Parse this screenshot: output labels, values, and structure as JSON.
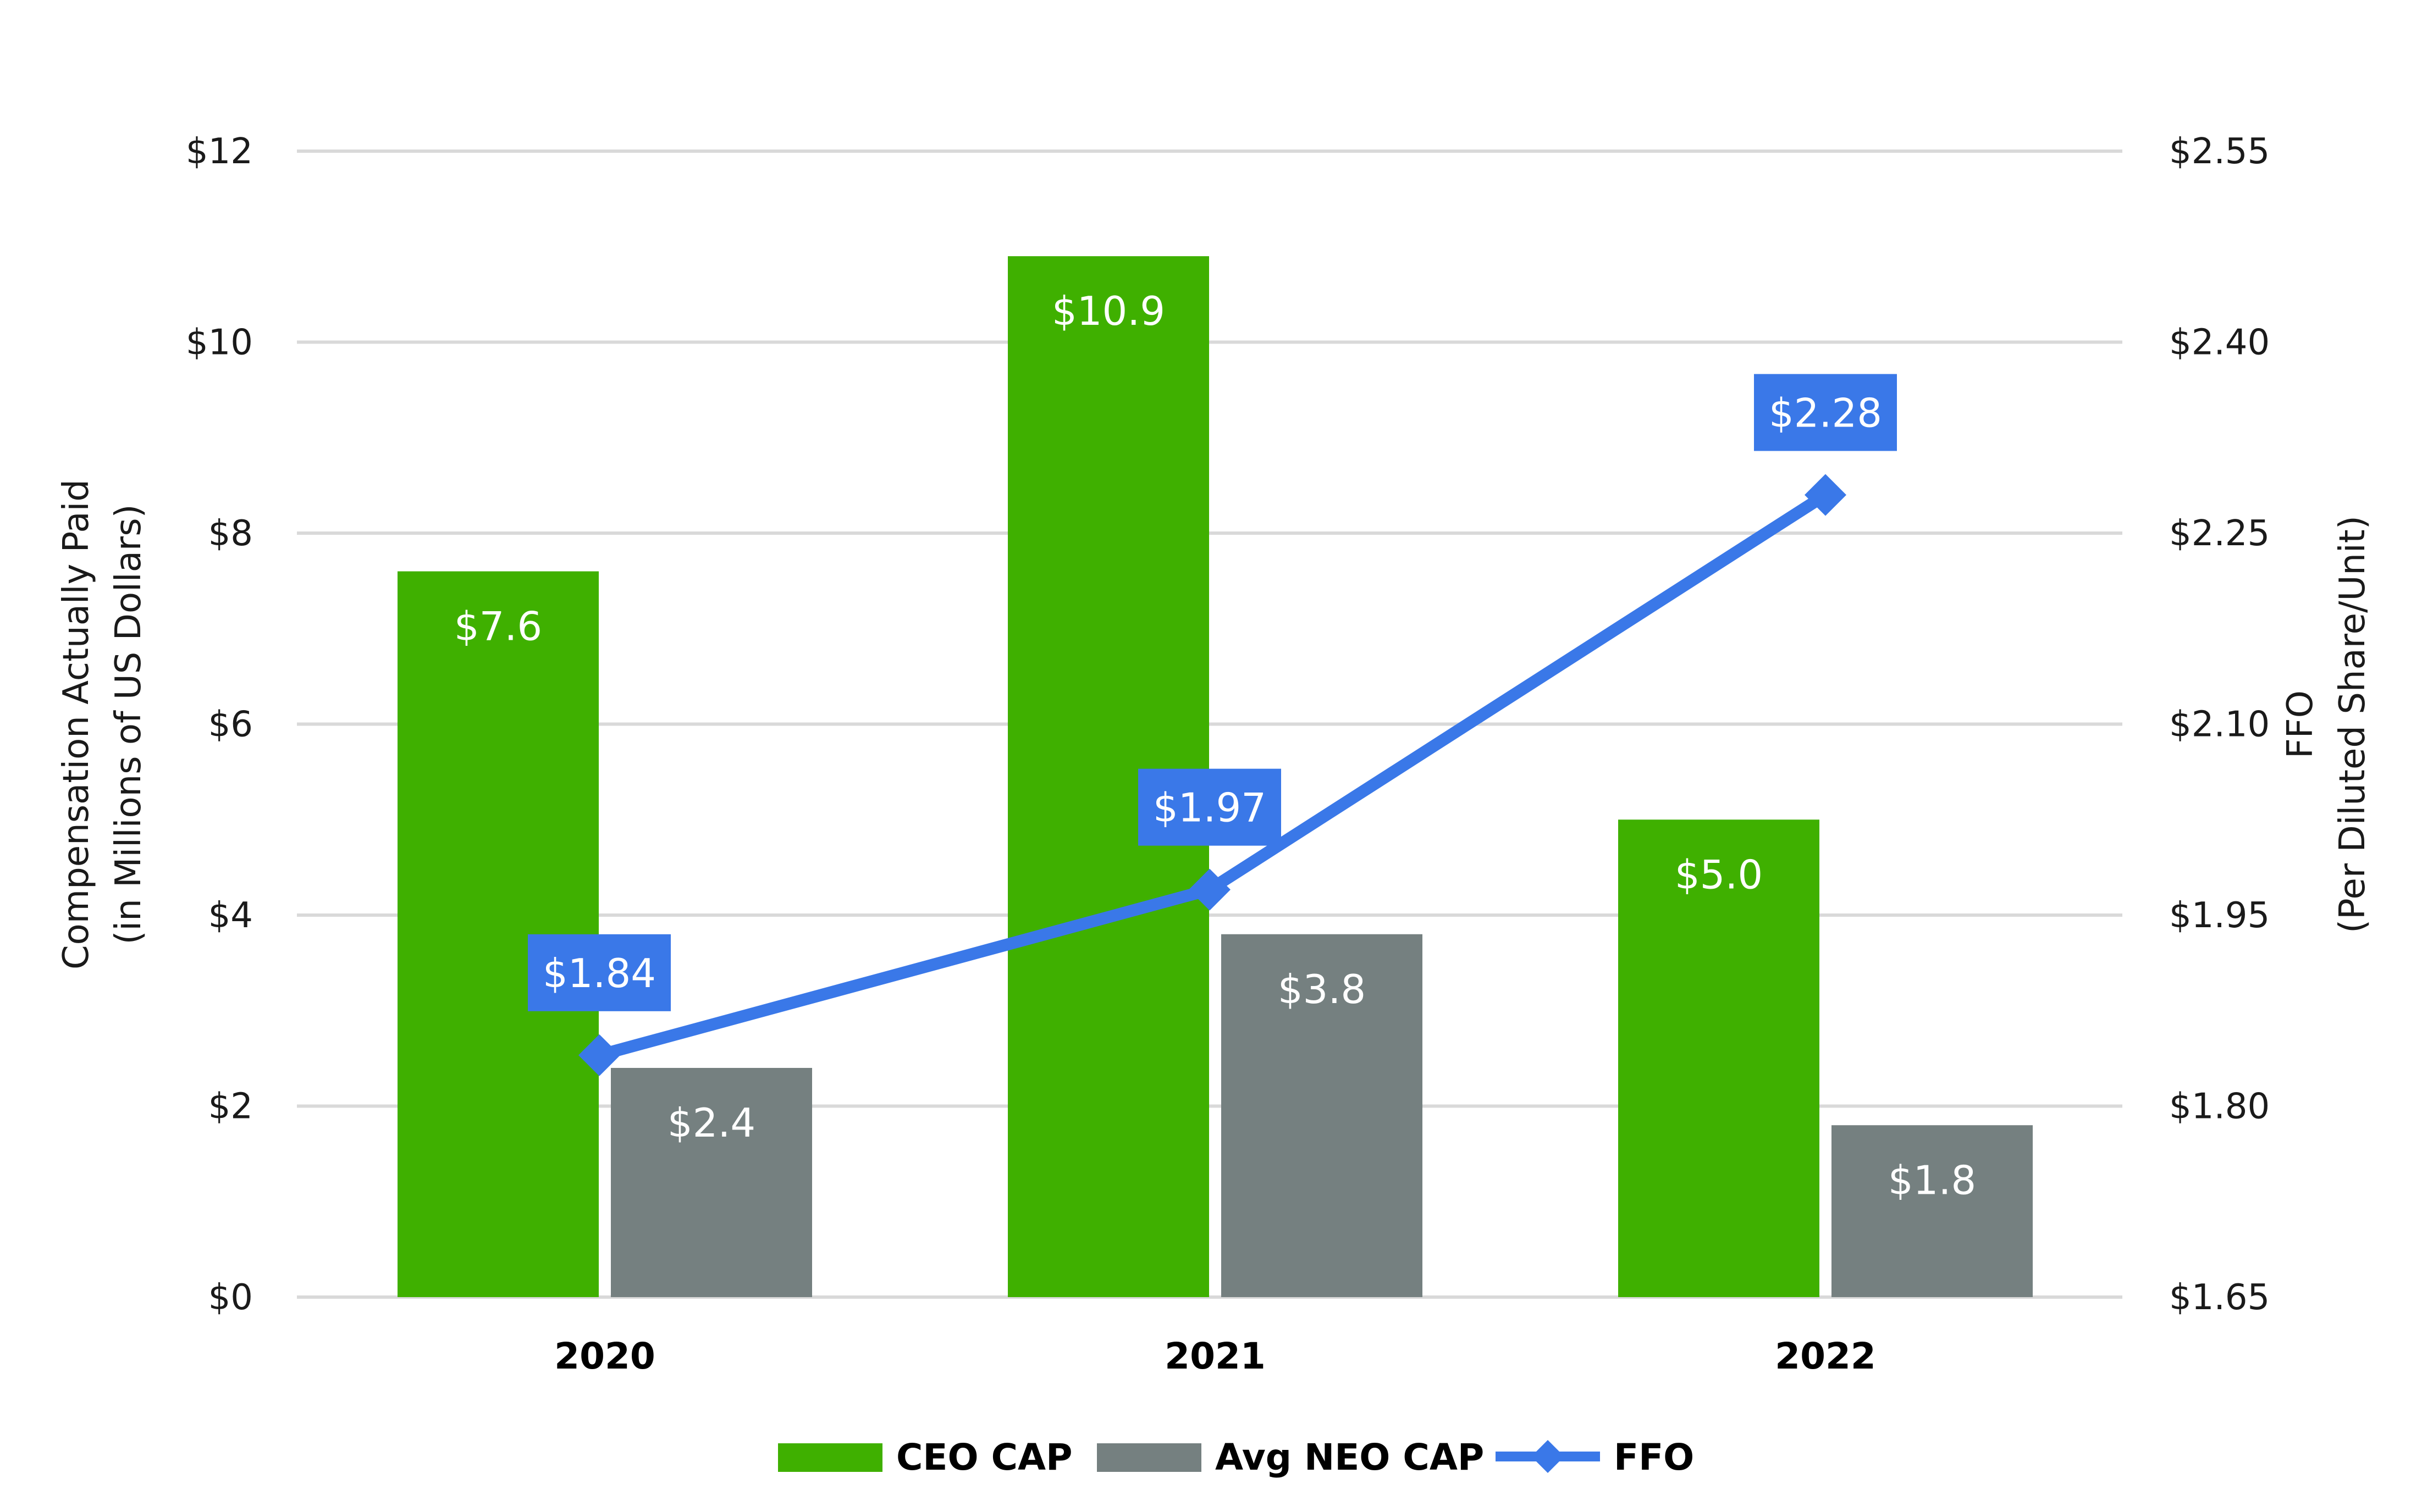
{
  "chart_data": {
    "type": "bar",
    "title": "",
    "categories": [
      "2020",
      "2021",
      "2022"
    ],
    "ylabel": [
      "Compensation Actually Paid",
      "(in Millions of US Dollars)"
    ],
    "y2label": [
      "FFO",
      "(Per Diluted Share/Unit)"
    ],
    "ylim": [
      0,
      12
    ],
    "y2lim": [
      1.65,
      2.55
    ],
    "y_ticks": [
      0,
      2,
      4,
      6,
      8,
      10,
      12
    ],
    "y_tick_labels": [
      "$0",
      "$2",
      "$4",
      "$6",
      "$8",
      "$10",
      "$12"
    ],
    "y2_ticks": [
      1.65,
      1.8,
      1.95,
      2.1,
      2.25,
      2.4,
      2.55
    ],
    "y2_tick_labels": [
      "$1.65",
      "$1.80",
      "$1.95",
      "$2.10",
      "$2.25",
      "$2.40",
      "$2.55"
    ],
    "grid": true,
    "legend_position": "bottom",
    "series": [
      {
        "name": "CEO CAP",
        "kind": "bar",
        "axis": "left",
        "color": "#3fb000",
        "values": [
          7.6,
          10.9,
          5.0
        ],
        "labels": [
          "$7.6",
          "$10.9",
          "$5.0"
        ]
      },
      {
        "name": "Avg NEO CAP",
        "kind": "bar",
        "axis": "left",
        "color": "#758080",
        "values": [
          2.4,
          3.8,
          1.8
        ],
        "labels": [
          "$2.4",
          "$3.8",
          "$1.8"
        ]
      },
      {
        "name": "FFO",
        "kind": "line",
        "axis": "right",
        "color": "#3a78e8",
        "values": [
          1.84,
          1.97,
          2.28
        ],
        "labels": [
          "$1.84",
          "$1.97",
          "$2.28"
        ]
      }
    ]
  }
}
